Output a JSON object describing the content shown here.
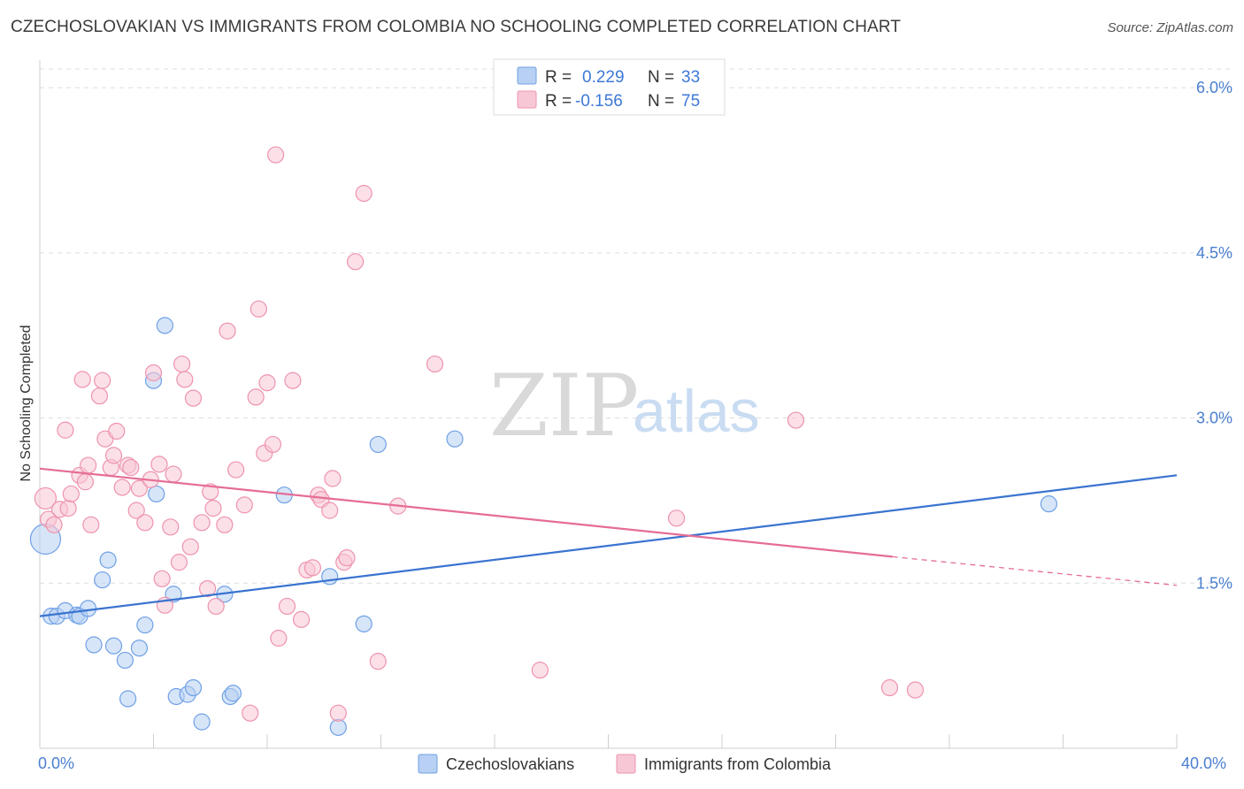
{
  "title": "CZECHOSLOVAKIAN VS IMMIGRANTS FROM COLOMBIA NO SCHOOLING COMPLETED CORRELATION CHART",
  "source": "Source: ZipAtlas.com",
  "watermark": {
    "left": "ZIP",
    "right": "atlas"
  },
  "colors": {
    "blue": "#6fa0e6",
    "blue_fill": "#b7d0f3",
    "blue_line": "#3a74d0",
    "pink": "#ee93ad",
    "pink_fill": "#f8c7d6",
    "pink_line": "#e56d96",
    "grid": "#dddddd"
  },
  "legend": {
    "rows": [
      {
        "r_label": "R = ",
        "r_value": "0.229",
        "n_label": "N = ",
        "n_value": "33",
        "series": "Czechoslovakians"
      },
      {
        "r_label": "R = ",
        "r_value": "-0.156",
        "n_label": "N = ",
        "n_value": "75",
        "series": "Immigrants from Colombia"
      }
    ]
  },
  "chart_data": {
    "type": "scatter",
    "title": "CZECHOSLOVAKIAN VS IMMIGRANTS FROM COLOMBIA NO SCHOOLING COMPLETED CORRELATION CHART",
    "xlabel": "",
    "ylabel": "No Schooling Completed",
    "xlim": [
      0,
      40
    ],
    "ylim": [
      0,
      6.25
    ],
    "x_tick_labels": [
      "0.0%",
      "40.0%"
    ],
    "y_ticks": [
      1.5,
      3.0,
      4.5,
      6.0
    ],
    "y_tick_labels": [
      "1.5%",
      "3.0%",
      "4.5%",
      "6.0%"
    ],
    "series": [
      {
        "name": "Czechoslovakians",
        "color": "#6fa0e6",
        "trend": {
          "x": [
            0,
            40
          ],
          "y": [
            1.2,
            2.48
          ]
        },
        "points": [
          [
            0.2,
            1.9
          ],
          [
            0.4,
            1.2
          ],
          [
            0.6,
            1.2
          ],
          [
            0.9,
            1.25
          ],
          [
            1.3,
            1.21
          ],
          [
            1.4,
            1.2
          ],
          [
            1.7,
            1.27
          ],
          [
            1.9,
            0.94
          ],
          [
            2.2,
            1.53
          ],
          [
            2.4,
            1.71
          ],
          [
            2.6,
            0.93
          ],
          [
            3.0,
            0.8
          ],
          [
            3.1,
            0.45
          ],
          [
            3.5,
            0.91
          ],
          [
            3.7,
            1.12
          ],
          [
            4.0,
            3.34
          ],
          [
            4.1,
            2.31
          ],
          [
            4.4,
            3.84
          ],
          [
            4.7,
            1.4
          ],
          [
            4.8,
            0.47
          ],
          [
            5.2,
            0.49
          ],
          [
            5.4,
            0.55
          ],
          [
            5.7,
            0.24
          ],
          [
            6.7,
            0.47
          ],
          [
            6.8,
            0.5
          ],
          [
            6.5,
            1.4
          ],
          [
            8.6,
            2.3
          ],
          [
            10.2,
            1.56
          ],
          [
            10.5,
            0.19
          ],
          [
            11.4,
            1.13
          ],
          [
            11.9,
            2.76
          ],
          [
            14.6,
            2.81
          ],
          [
            35.5,
            2.22
          ]
        ]
      },
      {
        "name": "Immigrants from Colombia",
        "color": "#ee93ad",
        "trend": {
          "x": [
            0,
            30
          ],
          "y": [
            2.54,
            1.74
          ],
          "dashed_to": {
            "x": 40,
            "y": 1.48
          }
        },
        "points": [
          [
            0.2,
            2.27
          ],
          [
            0.3,
            2.08
          ],
          [
            0.5,
            2.03
          ],
          [
            0.7,
            2.17
          ],
          [
            0.9,
            2.89
          ],
          [
            1.0,
            2.18
          ],
          [
            1.1,
            2.31
          ],
          [
            1.4,
            2.48
          ],
          [
            1.5,
            3.35
          ],
          [
            1.6,
            2.42
          ],
          [
            1.7,
            2.57
          ],
          [
            1.8,
            2.03
          ],
          [
            2.1,
            3.2
          ],
          [
            2.2,
            3.34
          ],
          [
            2.3,
            2.81
          ],
          [
            2.5,
            2.55
          ],
          [
            2.6,
            2.66
          ],
          [
            2.7,
            2.88
          ],
          [
            2.9,
            2.37
          ],
          [
            3.1,
            2.57
          ],
          [
            3.2,
            2.55
          ],
          [
            3.4,
            2.16
          ],
          [
            3.5,
            2.36
          ],
          [
            3.7,
            2.05
          ],
          [
            3.9,
            2.44
          ],
          [
            4.0,
            3.41
          ],
          [
            4.2,
            2.58
          ],
          [
            4.3,
            1.54
          ],
          [
            4.4,
            1.3
          ],
          [
            4.6,
            2.01
          ],
          [
            4.7,
            2.49
          ],
          [
            4.9,
            1.69
          ],
          [
            5.0,
            3.49
          ],
          [
            5.1,
            3.35
          ],
          [
            5.3,
            1.83
          ],
          [
            5.4,
            3.18
          ],
          [
            5.7,
            2.05
          ],
          [
            5.9,
            1.45
          ],
          [
            6.0,
            2.33
          ],
          [
            6.1,
            2.18
          ],
          [
            6.2,
            1.29
          ],
          [
            6.5,
            2.03
          ],
          [
            6.6,
            3.79
          ],
          [
            6.9,
            2.53
          ],
          [
            7.2,
            2.21
          ],
          [
            7.4,
            0.32
          ],
          [
            7.6,
            3.19
          ],
          [
            7.7,
            3.99
          ],
          [
            7.9,
            2.68
          ],
          [
            8.0,
            3.32
          ],
          [
            8.2,
            2.76
          ],
          [
            8.3,
            5.39
          ],
          [
            8.4,
            1.0
          ],
          [
            8.7,
            1.29
          ],
          [
            8.9,
            3.34
          ],
          [
            9.2,
            1.17
          ],
          [
            9.4,
            1.62
          ],
          [
            9.6,
            1.64
          ],
          [
            9.8,
            2.3
          ],
          [
            9.9,
            2.26
          ],
          [
            10.2,
            2.16
          ],
          [
            10.3,
            2.45
          ],
          [
            10.5,
            0.32
          ],
          [
            10.7,
            1.69
          ],
          [
            10.8,
            1.73
          ],
          [
            11.1,
            4.42
          ],
          [
            11.4,
            5.04
          ],
          [
            11.9,
            0.79
          ],
          [
            12.6,
            2.2
          ],
          [
            13.9,
            3.49
          ],
          [
            17.6,
            0.71
          ],
          [
            22.4,
            2.09
          ],
          [
            26.6,
            2.98
          ],
          [
            29.9,
            0.55
          ],
          [
            30.8,
            0.53
          ]
        ]
      }
    ],
    "legend_position": "top-center",
    "grid": true
  }
}
